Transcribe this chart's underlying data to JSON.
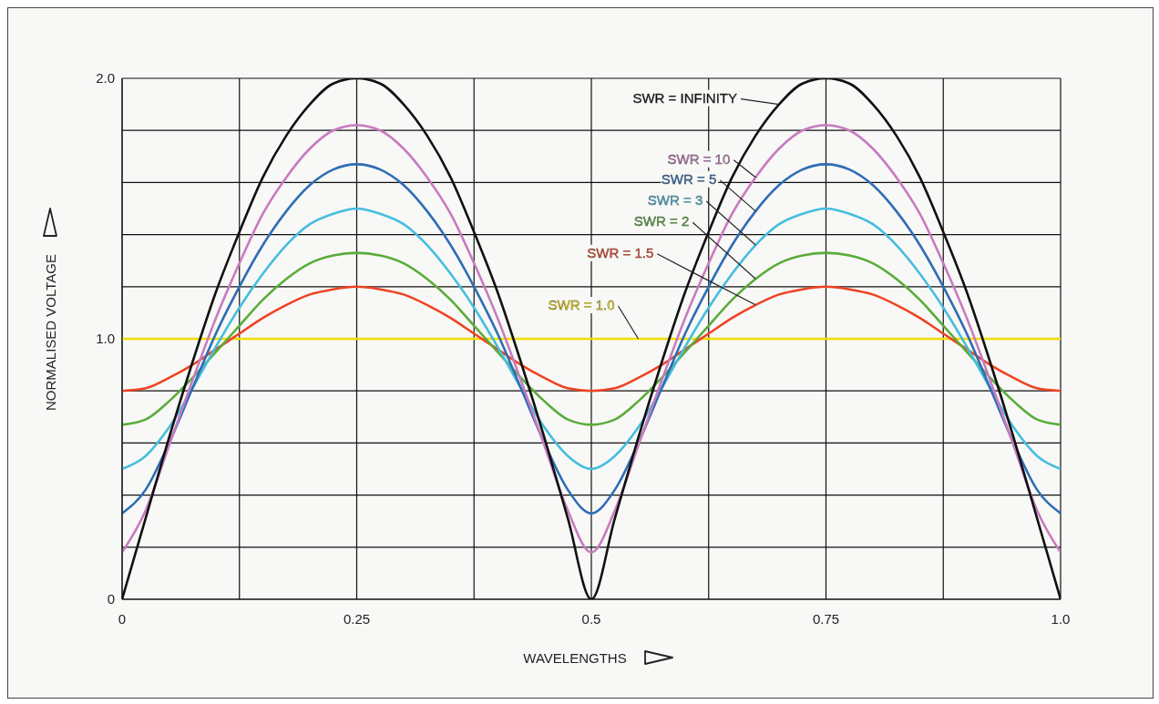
{
  "chart_data": {
    "type": "line",
    "xlabel": "WAVELENGTHS",
    "ylabel": "NORMALISED VOLTAGE",
    "x": [
      0,
      0.025,
      0.05,
      0.075,
      0.1,
      0.125,
      0.15,
      0.175,
      0.2,
      0.225,
      0.25,
      0.275,
      0.3,
      0.325,
      0.35,
      0.375,
      0.4,
      0.425,
      0.45,
      0.475,
      0.5,
      0.525,
      0.55,
      0.575,
      0.6,
      0.625,
      0.65,
      0.675,
      0.7,
      0.725,
      0.75,
      0.775,
      0.8,
      0.825,
      0.85,
      0.875,
      0.9,
      0.925,
      0.95,
      0.975,
      1.0
    ],
    "series": [
      {
        "name": "SWR = 1.0",
        "color": "#f2dd00",
        "values": [
          1,
          1,
          1,
          1,
          1,
          1,
          1,
          1,
          1,
          1,
          1,
          1,
          1,
          1,
          1,
          1,
          1,
          1,
          1,
          1,
          1,
          1,
          1,
          1,
          1,
          1,
          1,
          1,
          1,
          1,
          1,
          1,
          1,
          1,
          1,
          1,
          1,
          1,
          1,
          1,
          1
        ]
      },
      {
        "name": "SWR = 1.5",
        "color": "#ee4323",
        "values": [
          0.8,
          0.81,
          0.85,
          0.9,
          0.96,
          1.02,
          1.08,
          1.13,
          1.17,
          1.19,
          1.2,
          1.19,
          1.17,
          1.13,
          1.08,
          1.02,
          0.96,
          0.9,
          0.85,
          0.81,
          0.8,
          0.81,
          0.85,
          0.9,
          0.96,
          1.02,
          1.08,
          1.13,
          1.17,
          1.19,
          1.2,
          1.19,
          1.17,
          1.13,
          1.08,
          1.02,
          0.96,
          0.9,
          0.85,
          0.81,
          0.8
        ]
      },
      {
        "name": "SWR = 2",
        "color": "#5aac3a",
        "values": [
          0.67,
          0.69,
          0.76,
          0.85,
          0.95,
          1.05,
          1.15,
          1.23,
          1.29,
          1.32,
          1.33,
          1.32,
          1.29,
          1.23,
          1.15,
          1.05,
          0.95,
          0.85,
          0.76,
          0.69,
          0.67,
          0.69,
          0.76,
          0.85,
          0.95,
          1.05,
          1.15,
          1.23,
          1.29,
          1.32,
          1.33,
          1.32,
          1.29,
          1.23,
          1.15,
          1.05,
          0.95,
          0.85,
          0.76,
          0.69,
          0.67
        ]
      },
      {
        "name": "SWR = 3",
        "color": "#45bde0",
        "values": [
          0.5,
          0.55,
          0.66,
          0.81,
          0.97,
          1.12,
          1.25,
          1.36,
          1.44,
          1.48,
          1.5,
          1.48,
          1.44,
          1.36,
          1.25,
          1.12,
          0.97,
          0.81,
          0.66,
          0.55,
          0.5,
          0.55,
          0.66,
          0.81,
          0.97,
          1.12,
          1.25,
          1.36,
          1.44,
          1.48,
          1.5,
          1.48,
          1.44,
          1.36,
          1.25,
          1.12,
          0.97,
          0.81,
          0.66,
          0.55,
          0.5
        ]
      },
      {
        "name": "SWR = 5",
        "color": "#2f6db5",
        "values": [
          0.33,
          0.42,
          0.6,
          0.81,
          1.02,
          1.2,
          1.36,
          1.49,
          1.59,
          1.65,
          1.67,
          1.65,
          1.59,
          1.49,
          1.36,
          1.2,
          1.02,
          0.81,
          0.6,
          0.42,
          0.33,
          0.42,
          0.6,
          0.81,
          1.02,
          1.2,
          1.36,
          1.49,
          1.59,
          1.65,
          1.67,
          1.65,
          1.59,
          1.49,
          1.36,
          1.2,
          1.02,
          0.81,
          0.6,
          0.42,
          0.33
        ]
      },
      {
        "name": "SWR = 10",
        "color": "#c77bc0",
        "values": [
          0.18,
          0.34,
          0.59,
          0.84,
          1.08,
          1.29,
          1.48,
          1.62,
          1.73,
          1.8,
          1.82,
          1.8,
          1.73,
          1.62,
          1.48,
          1.29,
          1.08,
          0.84,
          0.59,
          0.34,
          0.18,
          0.34,
          0.59,
          0.84,
          1.08,
          1.29,
          1.48,
          1.62,
          1.73,
          1.8,
          1.82,
          1.8,
          1.73,
          1.62,
          1.48,
          1.29,
          1.08,
          0.84,
          0.59,
          0.34,
          0.18
        ]
      },
      {
        "name": "SWR = INFINITY",
        "color": "#111111",
        "values": [
          0,
          0.31,
          0.62,
          0.91,
          1.18,
          1.41,
          1.62,
          1.78,
          1.9,
          1.98,
          2.0,
          1.98,
          1.9,
          1.78,
          1.62,
          1.41,
          1.18,
          0.91,
          0.62,
          0.31,
          0,
          0.31,
          0.62,
          0.91,
          1.18,
          1.41,
          1.62,
          1.78,
          1.9,
          1.98,
          2.0,
          1.98,
          1.9,
          1.78,
          1.62,
          1.41,
          1.18,
          0.91,
          0.62,
          0.31,
          0
        ]
      }
    ],
    "xlim": [
      0,
      1.0
    ],
    "xticks": [
      0,
      {
        "value": 0.125,
        "label": null
      },
      0.25,
      {
        "value": 0.375,
        "label": null
      },
      0.5,
      {
        "value": 0.625,
        "label": null
      },
      0.75,
      {
        "value": 0.875,
        "label": null
      },
      {
        "value": 1,
        "label": "1.0"
      }
    ],
    "ylim": [
      0,
      2.0
    ],
    "yticks": [
      0,
      {
        "value": 0.2,
        "label": null
      },
      {
        "value": 0.4,
        "label": null
      },
      {
        "value": 0.6,
        "label": null
      },
      {
        "value": 0.8,
        "label": null
      },
      {
        "value": 1,
        "label": "1.0"
      },
      {
        "value": 1.2,
        "label": null
      },
      {
        "value": 1.4,
        "label": null
      },
      {
        "value": 1.6,
        "label": null
      },
      {
        "value": 1.8,
        "label": null
      },
      {
        "value": 2,
        "label": "2.0"
      }
    ],
    "grid": true
  }
}
